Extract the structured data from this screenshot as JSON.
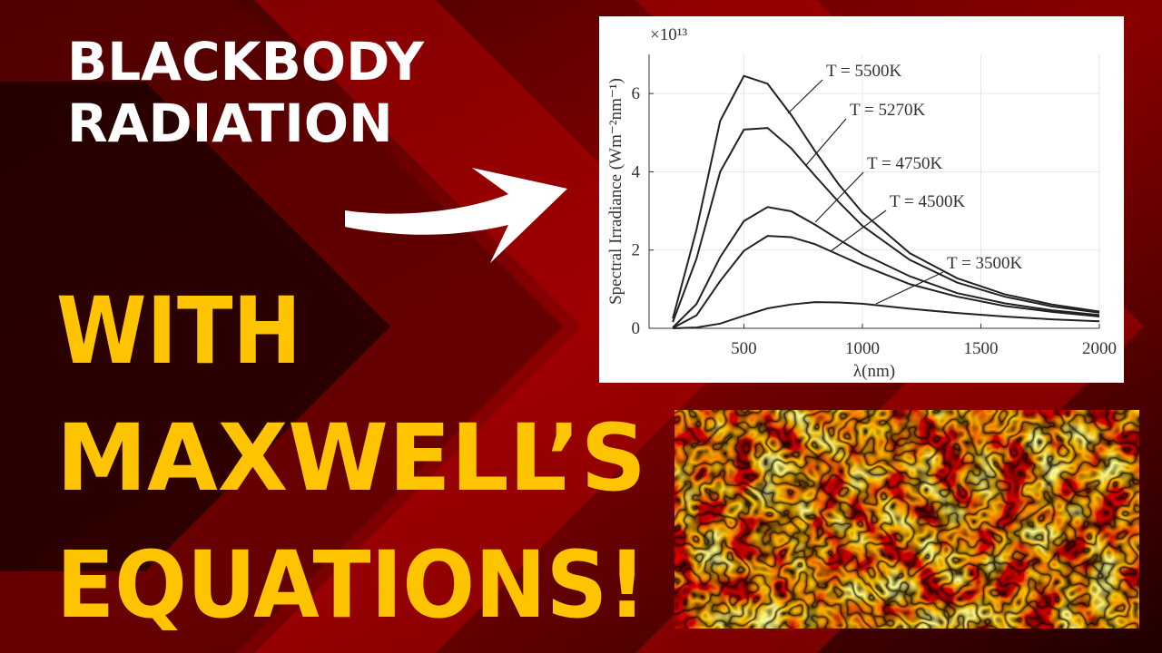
{
  "headline": [
    "BLACKBODY",
    "RADIATION"
  ],
  "subheadline": [
    "WITH",
    "MAXWELL’S",
    "EQUATIONS!"
  ],
  "chart_data": {
    "type": "line",
    "xlabel": "λ(nm)",
    "ylabel": "Spectral Irradiance (Wm⁻²nm⁻¹)",
    "y_multiplier": "×10¹³",
    "x": [
      200,
      300,
      400,
      500,
      600,
      700,
      800,
      900,
      1000,
      1200,
      1400,
      1600,
      1800,
      2000
    ],
    "xlim": [
      100,
      2000
    ],
    "xticks": [
      500,
      1000,
      1500,
      2000
    ],
    "ylim": [
      0,
      7
    ],
    "yticks": [
      0,
      2,
      4,
      6
    ],
    "grid": true,
    "series": [
      {
        "name": "T = 5500K",
        "color": "#222222",
        "values": [
          0.25,
          2.52,
          5.3,
          6.45,
          6.25,
          5.45,
          4.53,
          3.68,
          2.96,
          1.92,
          1.28,
          0.87,
          0.61,
          0.43
        ]
      },
      {
        "name": "T = 5270K",
        "color": "#222222",
        "values": [
          0.16,
          1.78,
          4.0,
          5.08,
          5.12,
          4.6,
          3.9,
          3.23,
          2.62,
          1.75,
          1.17,
          0.81,
          0.56,
          0.4
        ]
      },
      {
        "name": "T = 4750K",
        "color": "#222222",
        "values": [
          0.02,
          0.62,
          1.82,
          2.74,
          3.1,
          2.99,
          2.65,
          2.27,
          1.91,
          1.33,
          0.9,
          0.64,
          0.46,
          0.34
        ]
      },
      {
        "name": "T = 4500K",
        "color": "#222222",
        "values": [
          0.01,
          0.33,
          1.21,
          1.98,
          2.36,
          2.33,
          2.15,
          1.88,
          1.61,
          1.13,
          0.81,
          0.57,
          0.42,
          0.3
        ]
      },
      {
        "name": "T = 3500K",
        "color": "#222222",
        "values": [
          0,
          0.02,
          0.12,
          0.32,
          0.51,
          0.61,
          0.67,
          0.66,
          0.63,
          0.5,
          0.39,
          0.3,
          0.23,
          0.18
        ]
      }
    ]
  }
}
